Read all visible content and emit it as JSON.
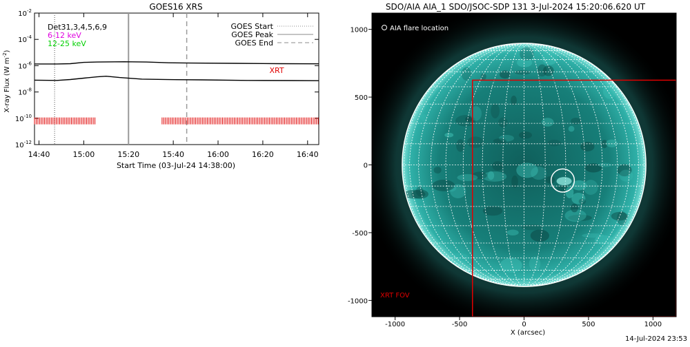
{
  "chart_data": [
    {
      "type": "line",
      "title": "GOES16 XRS",
      "xlabel": "Start Time (03-Jul-24 14:38:00)",
      "ylabel_main": "X-ray Flux (W m",
      "ylabel_exp": "-2",
      "ylabel_close": ")",
      "log_y": true,
      "xlim_min": [
        0,
        127
      ],
      "ylim_exp": [
        -12,
        -2
      ],
      "x_ticks_min": [
        2,
        22,
        42,
        62,
        82,
        102,
        122
      ],
      "x_tick_labels": [
        "14:40",
        "15:00",
        "15:20",
        "15:40",
        "16:00",
        "16:20",
        "16:40"
      ],
      "y_ticks_exp": [
        -12,
        -10,
        -8,
        -6,
        -4,
        -2
      ],
      "y_tick_base": "10",
      "y_tick_labels": [
        "-12",
        "-10",
        "-8",
        "-6",
        "-4",
        "-2"
      ],
      "legend_top_left": [
        {
          "text": "Det31,3,4,5,6,9",
          "color": "#000000"
        },
        {
          "text": "6-12 keV",
          "color": "#e000e0"
        },
        {
          "text": "12-25 keV",
          "color": "#00d000"
        }
      ],
      "legend_top_right": [
        {
          "text": "GOES Start",
          "style": "dotted"
        },
        {
          "text": "GOES Peak",
          "style": "solid"
        },
        {
          "text": "GOES End",
          "style": "dashed"
        }
      ],
      "markers_min": {
        "goes_start": 9,
        "goes_peak": 42,
        "goes_end": 68
      },
      "series": [
        {
          "x": [
            0,
            10,
            16,
            22,
            28,
            40,
            50,
            60,
            70,
            90,
            110,
            127
          ],
          "y_exp": [
            -5.87,
            -5.87,
            -5.85,
            -5.75,
            -5.72,
            -5.7,
            -5.72,
            -5.78,
            -5.8,
            -5.82,
            -5.85,
            -5.86
          ],
          "color": "#000000"
        },
        {
          "x": [
            0,
            10,
            16,
            22,
            28,
            32,
            38,
            48,
            60,
            75,
            95,
            115,
            127
          ],
          "y_exp": [
            -7.1,
            -7.12,
            -7.05,
            -6.95,
            -6.85,
            -6.8,
            -6.9,
            -7.02,
            -7.06,
            -7.08,
            -7.12,
            -7.13,
            -7.14
          ],
          "color": "#000000"
        }
      ],
      "xrt_label": "XRT",
      "xrt_color": "#e00000",
      "xrt_level_exp": -10.2,
      "xrt_intervals_min": [
        [
          0,
          27
        ],
        [
          57,
          127
        ]
      ]
    },
    {
      "type": "scatter",
      "title": "SDO/AIA AIA_1 SDO/JSOC-SDP 131  3-Jul-2024 15:20:06.620 UT",
      "xlabel": "X (arcsec)",
      "xlim": [
        -1180,
        1180
      ],
      "ylim": [
        -1120,
        1120
      ],
      "x_ticks": [
        -1000,
        -500,
        0,
        500,
        1000
      ],
      "y_ticks": [
        1000,
        500,
        0,
        -500,
        -1000
      ],
      "tick_labels_x": [
        "-1000",
        "-500",
        "0",
        "500",
        "1000"
      ],
      "tick_labels_y": [
        "1000",
        "500",
        "0",
        "-500",
        "-1000"
      ],
      "solar_radius_arcsec": 945,
      "grid_step_deg": 10,
      "legend_label": "AIA flare location",
      "flare_location_arcsec": {
        "x": 300,
        "y": -115,
        "r": 90
      },
      "xrt_fov_label": "XRT FOV",
      "xrt_fov_color": "#e00000",
      "xrt_fov_arcsec": {
        "x0": -400,
        "y0": -1120,
        "x1": 1180,
        "y1": 625
      },
      "disk_color": "#1a8f8a",
      "corona_color": "#5cc7bf"
    }
  ],
  "footer": {
    "timestamp": "14-Jul-2024 23:53"
  }
}
